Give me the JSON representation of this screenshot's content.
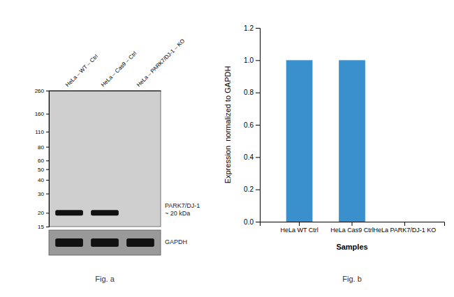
{
  "chart_data": [
    {
      "type": "blot",
      "title": "Fig. a",
      "categories": [
        "HeLa – WT – Ctrl",
        "HeLa – Cas9 – Ctrl",
        "HeLa – PARK7/DJ-1 – KO"
      ],
      "series": [
        {
          "name": "PARK7/DJ-1\n~ 20 kDa",
          "color": "#111111",
          "values": [
            20,
            20,
            null
          ]
        }
      ],
      "annotations": [
        "GAPDH"
      ],
      "log": "y",
      "ylim": [
        15,
        260
      ],
      "yticks": [
        260,
        160,
        110,
        80,
        60,
        50,
        40,
        30,
        20,
        15
      ]
    },
    {
      "type": "bar",
      "title": "Fig. b",
      "categories": [
        "HeLa WT Ctrl",
        "HeLa Cas9 Ctrl",
        "HeLa PARK7/DJ-1 KO"
      ],
      "values": [
        1.0,
        1.0,
        0.0
      ],
      "color": "#3a8fcd",
      "xlabel": "Samples",
      "ylabel": "Expression  normalized to GAPDH",
      "ylim": [
        0,
        1.2
      ],
      "yticks": [
        {
          "value": 0,
          "label": "0.0"
        },
        0.2,
        0.4,
        0.6,
        0.8,
        {
          "value": 1.0,
          "label": "1.0"
        },
        1.2
      ]
    }
  ]
}
